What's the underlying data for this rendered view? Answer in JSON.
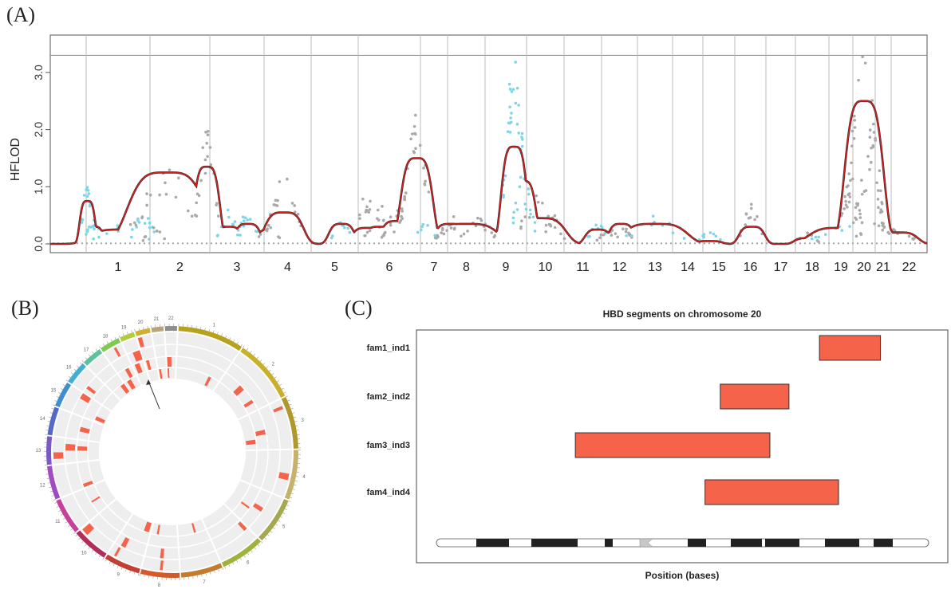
{
  "panels": {
    "a_label": "(A)",
    "b_label": "(B)",
    "c_label": "(C)"
  },
  "colors": {
    "line": "#d42020",
    "cyan_points": "#7dd6e8",
    "grey_points": "#a9a9a9",
    "segment_fill": "#f4634a",
    "track_bg": "#eeeeee"
  },
  "chart_data": [
    {
      "type": "line",
      "ylabel": "HFLOD",
      "ylim": [
        0,
        3.4
      ],
      "yticks": [
        "0.0",
        "1.0",
        "2.0",
        "3.0"
      ],
      "threshold": 3.3,
      "chromosomes": [
        "1",
        "2",
        "3",
        "4",
        "5",
        "6",
        "7",
        "8",
        "9",
        "10",
        "11",
        "12",
        "13",
        "14",
        "15",
        "16",
        "17",
        "18",
        "19",
        "20",
        "21",
        "22"
      ],
      "peaks": [
        {
          "chr": "1",
          "pos": 0.02,
          "lod": 0.75,
          "w": 0.012,
          "pts": 1.2,
          "color": "cyan"
        },
        {
          "chr": "1",
          "pos": 0.12,
          "lod": 0.3,
          "w": 0.015,
          "pts": 0.45,
          "color": "cyan"
        },
        {
          "chr": "1",
          "pos": 0.55,
          "lod": 0.25,
          "w": 0.05,
          "pts": 0.35,
          "color": "cyan"
        },
        {
          "chr": "1",
          "pos": 0.9,
          "lod": 0.28,
          "w": 0.02,
          "pts": 0.6,
          "color": "cyan"
        },
        {
          "chr": "2",
          "pos": 0.08,
          "lod": 0.2,
          "w": 0.02,
          "pts": 0.3,
          "color": "grey"
        },
        {
          "chr": "2",
          "pos": 0.28,
          "lod": 1.25,
          "w": 0.06,
          "pts": 1.4,
          "color": "grey"
        },
        {
          "chr": "2",
          "pos": 0.95,
          "lod": 1.35,
          "w": 0.02,
          "pts": 2.0,
          "color": "grey"
        },
        {
          "chr": "3",
          "pos": 0.35,
          "lod": 0.3,
          "w": 0.02,
          "pts": 0.6,
          "color": "cyan"
        },
        {
          "chr": "3",
          "pos": 0.7,
          "lod": 0.35,
          "w": 0.02,
          "pts": 0.6,
          "color": "cyan"
        },
        {
          "chr": "4",
          "pos": 0.12,
          "lod": 0.25,
          "w": 0.02,
          "pts": 0.4,
          "color": "grey"
        },
        {
          "chr": "4",
          "pos": 0.42,
          "lod": 0.55,
          "w": 0.03,
          "pts": 1.2,
          "color": "grey"
        },
        {
          "chr": "5",
          "pos": 0.65,
          "lod": 0.35,
          "w": 0.02,
          "pts": 0.4,
          "color": "cyan"
        },
        {
          "chr": "6",
          "pos": 0.15,
          "lod": 0.28,
          "w": 0.025,
          "pts": 0.9,
          "color": "grey"
        },
        {
          "chr": "6",
          "pos": 0.35,
          "lod": 0.3,
          "w": 0.025,
          "pts": 0.7,
          "color": "grey"
        },
        {
          "chr": "6",
          "pos": 0.62,
          "lod": 0.4,
          "w": 0.025,
          "pts": 0.6,
          "color": "grey"
        },
        {
          "chr": "6",
          "pos": 0.94,
          "lod": 1.5,
          "w": 0.025,
          "pts": 2.4,
          "color": "grey"
        },
        {
          "chr": "7",
          "pos": 0.2,
          "lod": 0.2,
          "w": 0.02,
          "pts": 0.4,
          "color": "cyan"
        },
        {
          "chr": "8",
          "pos": 0.08,
          "lod": 0.35,
          "w": 0.025,
          "pts": 0.4,
          "color": "grey"
        },
        {
          "chr": "8",
          "pos": 0.5,
          "lod": 0.35,
          "w": 0.05,
          "pts": 0.6,
          "color": "grey"
        },
        {
          "chr": "8",
          "pos": 0.8,
          "lod": 0.25,
          "w": 0.03,
          "pts": 0.5,
          "color": "grey"
        },
        {
          "chr": "9",
          "pos": 0.7,
          "lod": 1.7,
          "w": 0.02,
          "pts": 3.5,
          "color": "cyan"
        },
        {
          "chr": "9",
          "pos": 0.92,
          "lod": 1.1,
          "w": 0.02,
          "pts": 1.3,
          "color": "cyan"
        },
        {
          "chr": "10",
          "pos": 0.35,
          "lod": 0.45,
          "w": 0.04,
          "pts": 0.9,
          "color": "grey"
        },
        {
          "chr": "10",
          "pos": 0.7,
          "lod": 0.35,
          "w": 0.02,
          "pts": 0.5,
          "color": "grey"
        },
        {
          "chr": "11",
          "pos": 0.9,
          "lod": 0.25,
          "w": 0.02,
          "pts": 0.35,
          "color": "cyan"
        },
        {
          "chr": "12",
          "pos": 0.2,
          "lod": 0.2,
          "w": 0.02,
          "pts": 0.3,
          "color": "grey"
        },
        {
          "chr": "12",
          "pos": 0.55,
          "lod": 0.35,
          "w": 0.02,
          "pts": 0.4,
          "color": "grey"
        },
        {
          "chr": "13",
          "pos": 0.5,
          "lod": 0.35,
          "w": 0.05,
          "pts": 0.5,
          "color": "cyan"
        },
        {
          "chr": "15",
          "pos": 0.2,
          "lod": 0.05,
          "w": 0.02,
          "pts": 0.25,
          "color": "cyan"
        },
        {
          "chr": "16",
          "pos": 0.55,
          "lod": 0.3,
          "w": 0.02,
          "pts": 0.7,
          "color": "grey"
        },
        {
          "chr": "18",
          "pos": 0.35,
          "lod": 0.1,
          "w": 0.02,
          "pts": 0.2,
          "color": "grey"
        },
        {
          "chr": "19",
          "pos": 0.5,
          "lod": 0.28,
          "w": 0.05,
          "pts": 0.35,
          "color": "cyan"
        },
        {
          "chr": "19",
          "pos": 0.92,
          "lod": 0.25,
          "w": 0.02,
          "pts": 1.2,
          "color": "grey"
        },
        {
          "chr": "20",
          "pos": 0.5,
          "lod": 2.5,
          "w": 0.03,
          "pts": 3.4,
          "color": "grey"
        },
        {
          "chr": "20",
          "pos": 0.7,
          "lod": 1.4,
          "w": 0.025,
          "pts": 1.6,
          "color": "grey"
        },
        {
          "chr": "20",
          "pos": 0.95,
          "lod": 0.35,
          "w": 0.03,
          "pts": 0.5,
          "color": "grey"
        },
        {
          "chr": "22",
          "pos": 0.2,
          "lod": 0.2,
          "w": 0.03,
          "pts": 0.3,
          "color": "grey"
        }
      ]
    },
    {
      "type": "circos",
      "chromosome_labels": [
        "1",
        "2",
        "3",
        "4",
        "5",
        "6",
        "7",
        "8",
        "9",
        "10",
        "11",
        "12",
        "13",
        "14",
        "15",
        "16",
        "17",
        "18",
        "19",
        "20",
        "21",
        "22"
      ]
    },
    {
      "type": "bar",
      "title": "HBD segments on chromosome 20",
      "xlabel": "Position (bases)",
      "categories": [
        "fam1_ind1",
        "fam2_ind2",
        "fam3_ind3",
        "fam4_ind4"
      ],
      "xlim": [
        0,
        64
      ],
      "segments": [
        {
          "start": 50,
          "end": 58
        },
        {
          "start": 37,
          "end": 46
        },
        {
          "start": 18,
          "end": 43.5
        },
        {
          "start": 35,
          "end": 52.5
        }
      ]
    }
  ]
}
